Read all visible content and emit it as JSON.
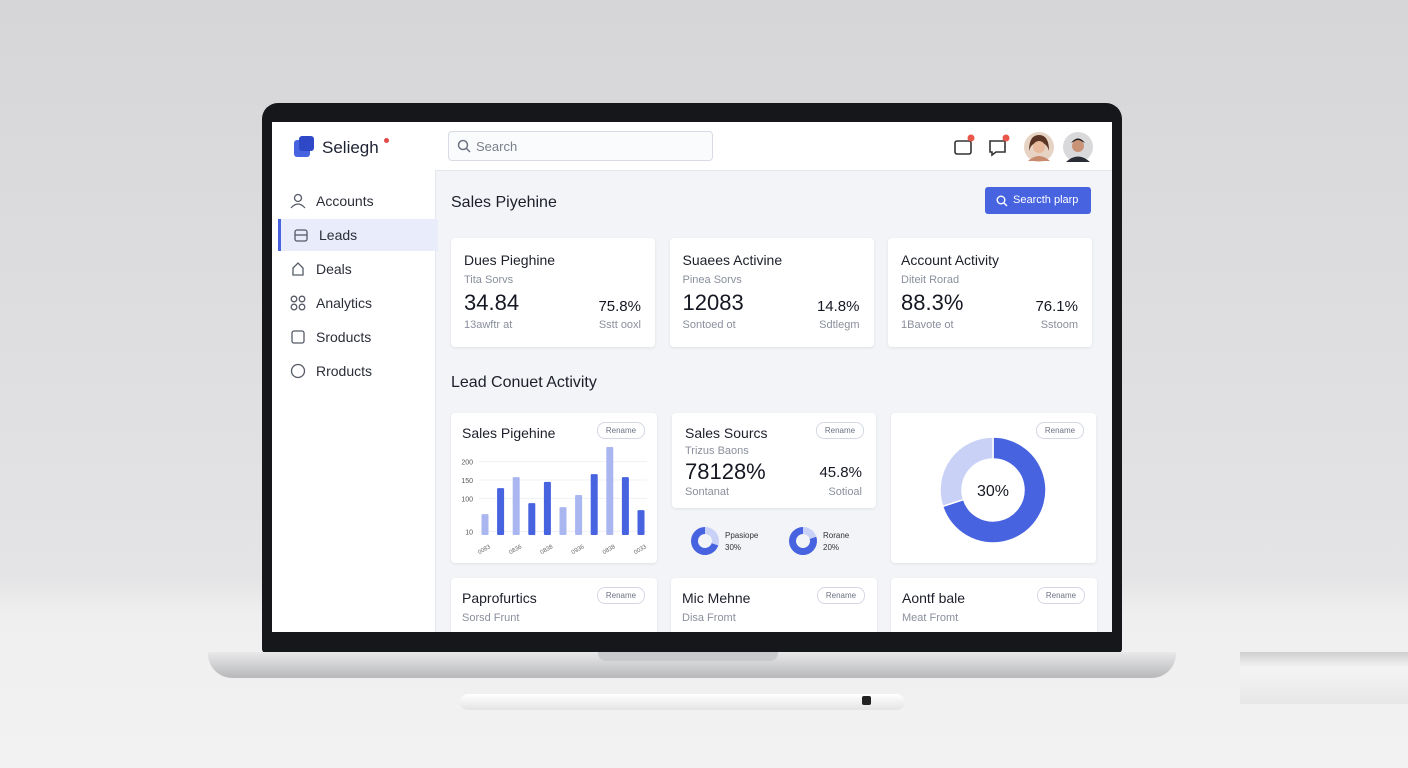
{
  "brand": "Seliegh",
  "search_placeholder": "Search",
  "nav": [
    {
      "label": "Accounts"
    },
    {
      "label": "Leads",
      "active": true
    },
    {
      "label": "Deals"
    },
    {
      "label": "Analytics"
    },
    {
      "label": "Sroducts"
    },
    {
      "label": "Rroducts"
    }
  ],
  "page_title": "Sales Piyehine",
  "action_button": "Searcth plarp",
  "kpi_cards": [
    {
      "title": "Dues Pieghine",
      "subtitle": "Tita Sorvs",
      "value": "34.84",
      "change": "75.8%",
      "caption": "13awftr at",
      "caption_right": "Sstt ooxl"
    },
    {
      "title": "Suaees Activine",
      "subtitle": "Pinea Sorvs",
      "value": "12083",
      "change": "14.8%",
      "caption": "Sontoed ot",
      "caption_right": "Sdtlegm"
    },
    {
      "title": "Account Activity",
      "subtitle": "Diteit Rorad",
      "value": "88.3%",
      "change": "76.1%",
      "caption": "1Bavote ot",
      "caption_right": "Sstoom"
    }
  ],
  "section_title": "Lead Conuet Activity",
  "chart_data": {
    "type": "bar",
    "title": "Sales Pigehine",
    "badge": "Rename",
    "categories": [
      "0083",
      null,
      "0836",
      null,
      "0838",
      null,
      "0936",
      null,
      "0838",
      null,
      "0033"
    ],
    "values": [
      57,
      128,
      158,
      87,
      145,
      76,
      109,
      166,
      240,
      158,
      68
    ],
    "colors": [
      "#a9b6ef",
      "#4763e0",
      "#a9b6ef",
      "#4763e0",
      "#4763e0",
      "#a9b6ef",
      "#a9b6ef",
      "#4763e0",
      "#a9b6ef",
      "#4763e0",
      "#4763e0"
    ],
    "ylim": [
      0,
      240
    ],
    "yticks": [
      10,
      100,
      150,
      200
    ]
  },
  "sources_card": {
    "title": "Sales Sourcs",
    "subtitle": "Trizus Baons",
    "value": "78128%",
    "change": "45.8%",
    "caption": "Sontanat",
    "caption_right": "Sotioal",
    "badge": "Rename"
  },
  "mini_donuts": [
    {
      "label": "Ppasiope",
      "value": 30,
      "value_label": "30%"
    },
    {
      "label": "Rorane",
      "value": 20,
      "value_label": "20%"
    }
  ],
  "donut_card": {
    "type": "pie",
    "badge": "Rename",
    "values": [
      70,
      30
    ],
    "colors": [
      "#4763e0",
      "#c9d2f6"
    ],
    "center_label": "30%"
  },
  "bottom_cards": [
    {
      "title": "Paprofurtics",
      "subtitle": "Sorsd Frunt",
      "badge": "Rename"
    },
    {
      "title": "Mic Mehne",
      "subtitle": "Disa Fromt",
      "badge": "Rename"
    },
    {
      "title": "Aontf bale",
      "subtitle": "Meat Fromt",
      "badge": "Rename"
    }
  ]
}
